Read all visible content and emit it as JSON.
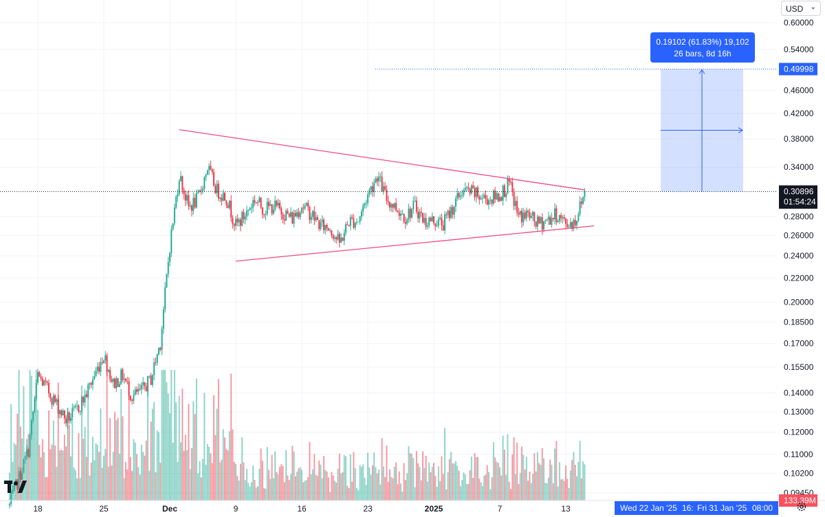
{
  "currency": {
    "label": "USD"
  },
  "chart_data": {
    "type": "candlestick",
    "price_scale": "log",
    "y_ticks": [
      "0.60000",
      "0.54000",
      "0.46000",
      "0.42000",
      "0.38000",
      "0.34000",
      "0.28000",
      "0.26000",
      "0.24000",
      "0.22000",
      "0.20000",
      "0.18500",
      "0.17000",
      "0.15500",
      "0.14000",
      "0.13000",
      "0.12000",
      "0.11000",
      "0.10200",
      "0.09450"
    ],
    "x_ticks": [
      "18",
      "25",
      "Dec",
      "9",
      "16",
      "23",
      "2025",
      "7",
      "13"
    ],
    "bold_x_ticks": [
      "Dec",
      "2025"
    ],
    "last_price": "0.30896",
    "countdown": "01:54:24",
    "volume_label": "133.39M",
    "target_price": "0.49998",
    "measure_label_line1": "0.19102 (61.83%) 19,102",
    "measure_label_line2": "26 bars, 8d 16h",
    "time_range_label_start": "Wed 22 Jan '25",
    "time_range_label_mid": "16:",
    "time_range_label_end": "Fri 31 Jan '25",
    "time_range_label_time": "08:00",
    "trendlines": [
      {
        "name": "upper",
        "from": {
          "date": "2024-12-03",
          "price": 0.394
        },
        "to": {
          "date": "2025-01-15",
          "price": 0.311
        }
      },
      {
        "name": "lower",
        "from": {
          "date": "2024-12-09",
          "price": 0.235
        },
        "to": {
          "date": "2025-01-16",
          "price": 0.27
        }
      }
    ],
    "measure": {
      "from_price": 0.30896,
      "to_price": 0.49998,
      "change": "0.19102",
      "percent": "61.83%"
    },
    "anchor_series": [
      [
        "2024-11-15",
        0.09
      ],
      [
        "2024-11-17",
        0.112
      ],
      [
        "2024-11-18",
        0.15
      ],
      [
        "2024-11-19",
        0.142
      ],
      [
        "2024-11-21",
        0.126
      ],
      [
        "2024-11-22",
        0.13
      ],
      [
        "2024-11-23",
        0.138
      ],
      [
        "2024-11-25",
        0.163
      ],
      [
        "2024-11-26",
        0.145
      ],
      [
        "2024-11-27",
        0.15
      ],
      [
        "2024-11-28",
        0.138
      ],
      [
        "2024-11-29",
        0.141
      ],
      [
        "2024-11-30",
        0.148
      ],
      [
        "2024-12-01",
        0.171
      ],
      [
        "2024-12-02",
        0.25
      ],
      [
        "2024-12-03",
        0.33
      ],
      [
        "2024-12-04",
        0.29
      ],
      [
        "2024-12-05",
        0.3
      ],
      [
        "2024-12-06",
        0.34
      ],
      [
        "2024-12-07",
        0.31
      ],
      [
        "2024-12-08",
        0.302
      ],
      [
        "2024-12-09",
        0.27
      ],
      [
        "2024-12-10",
        0.282
      ],
      [
        "2024-12-11",
        0.3
      ],
      [
        "2024-12-12",
        0.288
      ],
      [
        "2024-12-13",
        0.292
      ],
      [
        "2024-12-15",
        0.278
      ],
      [
        "2024-12-16",
        0.293
      ],
      [
        "2024-12-17",
        0.283
      ],
      [
        "2024-12-18",
        0.27
      ],
      [
        "2024-12-19",
        0.268
      ],
      [
        "2024-12-20",
        0.252
      ],
      [
        "2024-12-21",
        0.275
      ],
      [
        "2024-12-22",
        0.276
      ],
      [
        "2024-12-23",
        0.305
      ],
      [
        "2024-12-24",
        0.33
      ],
      [
        "2024-12-25",
        0.3
      ],
      [
        "2024-12-26",
        0.29
      ],
      [
        "2024-12-27",
        0.28
      ],
      [
        "2024-12-28",
        0.292
      ],
      [
        "2024-12-29",
        0.275
      ],
      [
        "2024-12-30",
        0.276
      ],
      [
        "2024-12-31",
        0.272
      ],
      [
        "2025-01-01",
        0.29
      ],
      [
        "2025-01-02",
        0.31
      ],
      [
        "2025-01-03",
        0.308
      ],
      [
        "2025-01-04",
        0.302
      ],
      [
        "2025-01-05",
        0.3
      ],
      [
        "2025-01-06",
        0.305
      ],
      [
        "2025-01-07",
        0.318
      ],
      [
        "2025-01-08",
        0.28
      ],
      [
        "2025-01-09",
        0.282
      ],
      [
        "2025-01-10",
        0.272
      ],
      [
        "2025-01-11",
        0.276
      ],
      [
        "2025-01-12",
        0.282
      ],
      [
        "2025-01-13",
        0.272
      ],
      [
        "2025-01-14",
        0.275
      ],
      [
        "2025-01-15",
        0.309
      ]
    ]
  }
}
